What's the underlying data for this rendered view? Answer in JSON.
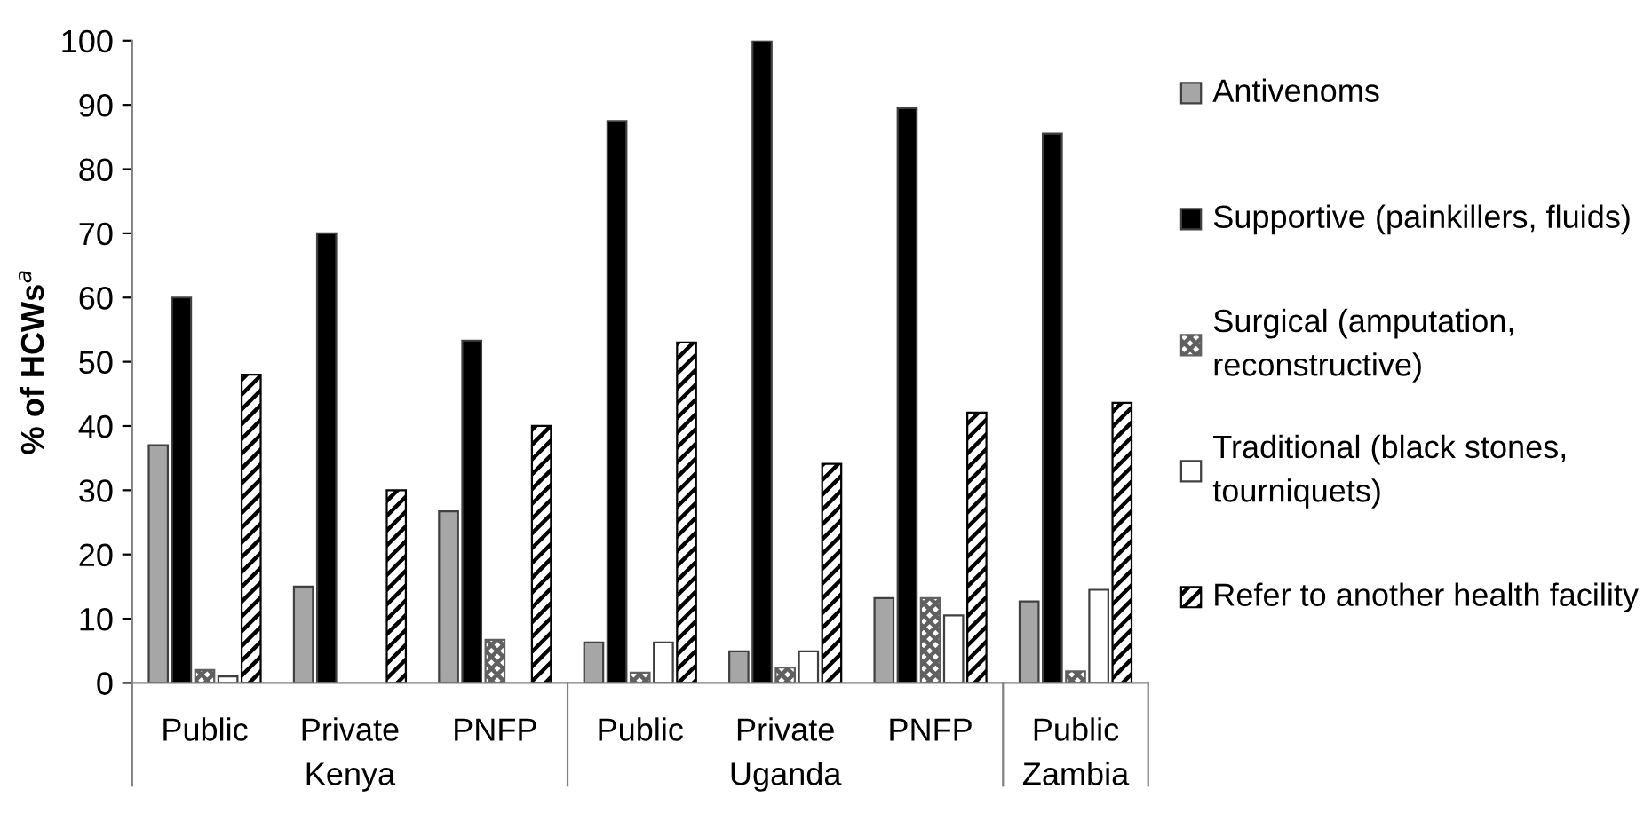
{
  "chart_data": {
    "type": "bar",
    "ylabel": "% of HCWs$^{a}$",
    "categories": [
      "Public",
      "Private",
      "PNFP",
      "Public",
      "Private",
      "PNFP",
      "Public"
    ],
    "series": [
      {
        "name": "Antivenoms",
        "color": "#a6a6a6",
        "values": [
          37,
          15,
          26.7,
          6.3,
          4.9,
          13.2,
          12.7
        ]
      },
      {
        "name": "Supportive (painkillers, fluids)",
        "color": "#000000",
        "values": [
          60,
          70,
          53.3,
          87.5,
          100,
          89.5,
          85.5
        ]
      },
      {
        "name": "Surgical (amputation, reconstructive)",
        "color": "#606060",
        "values": [
          2,
          0,
          6.7,
          1.6,
          2.4,
          13.2,
          1.8
        ]
      },
      {
        "name": "Traditional (black stones, tourniquets)",
        "color": "#ffffff",
        "values": [
          1,
          0,
          0,
          6.3,
          4.9,
          10.5,
          14.5
        ]
      },
      {
        "name": "Refer to another health facility",
        "color": "#000000",
        "values": [
          48,
          30,
          40,
          53,
          34.1,
          42.1,
          43.6
        ]
      }
    ],
    "annotations": [
      "Kenya",
      "Uganda",
      "Zambia"
    ],
    "ylim": [
      0,
      100
    ],
    "yticks": [
      0,
      10,
      20,
      30,
      40,
      50,
      60,
      70,
      80,
      90,
      100
    ],
    "grid": false,
    "legend": "right"
  }
}
